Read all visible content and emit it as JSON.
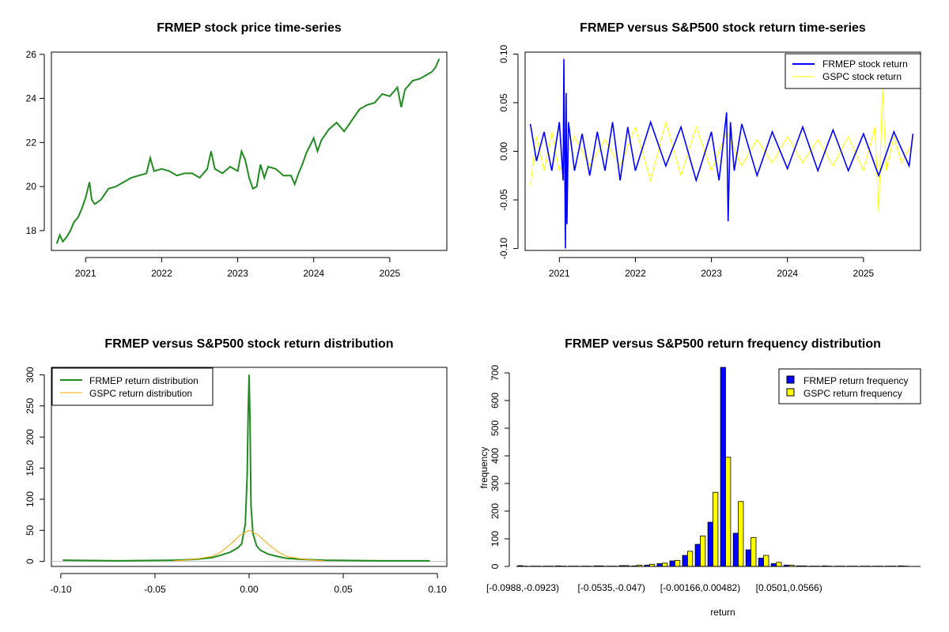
{
  "chart_data": [
    {
      "type": "line",
      "title": "FRMEP stock price time-series",
      "xlabel": "",
      "ylabel": "",
      "xlim": [
        2020.55,
        2025.75
      ],
      "ylim": [
        17.1,
        26.1
      ],
      "x_ticks": [
        2021,
        2022,
        2023,
        2024,
        2025
      ],
      "x_tick_labels": [
        "2021",
        "2022",
        "2023",
        "2024",
        "2025"
      ],
      "y_ticks": [
        18,
        20,
        22,
        24,
        26
      ],
      "y_tick_labels": [
        "18",
        "20",
        "22",
        "24",
        "26"
      ],
      "series": [
        {
          "name": "FRMEP price",
          "color": "#228b22",
          "x": [
            2020.62,
            2020.66,
            2020.7,
            2020.75,
            2020.8,
            2020.85,
            2020.9,
            2020.95,
            2021.0,
            2021.05,
            2021.08,
            2021.12,
            2021.2,
            2021.3,
            2021.4,
            2021.5,
            2021.6,
            2021.7,
            2021.8,
            2021.85,
            2021.9,
            2022.0,
            2022.1,
            2022.2,
            2022.3,
            2022.4,
            2022.5,
            2022.6,
            2022.65,
            2022.7,
            2022.8,
            2022.9,
            2023.0,
            2023.05,
            2023.1,
            2023.15,
            2023.2,
            2023.25,
            2023.3,
            2023.35,
            2023.4,
            2023.5,
            2023.6,
            2023.7,
            2023.75,
            2023.8,
            2023.85,
            2023.9,
            2024.0,
            2024.05,
            2024.1,
            2024.2,
            2024.3,
            2024.4,
            2024.5,
            2024.6,
            2024.7,
            2024.8,
            2024.9,
            2025.0,
            2025.1,
            2025.15,
            2025.2,
            2025.3,
            2025.4,
            2025.5,
            2025.55,
            2025.6,
            2025.65
          ],
          "values": [
            17.4,
            17.8,
            17.5,
            17.7,
            18.0,
            18.4,
            18.6,
            19.0,
            19.5,
            20.2,
            19.4,
            19.2,
            19.4,
            19.9,
            20.0,
            20.2,
            20.4,
            20.5,
            20.6,
            21.3,
            20.7,
            20.8,
            20.7,
            20.5,
            20.6,
            20.6,
            20.4,
            20.8,
            21.6,
            20.8,
            20.6,
            20.9,
            20.7,
            21.6,
            21.2,
            20.4,
            19.9,
            20.0,
            21.0,
            20.4,
            20.9,
            20.8,
            20.5,
            20.5,
            20.1,
            20.6,
            21.0,
            21.5,
            22.2,
            21.6,
            22.1,
            22.6,
            22.9,
            22.5,
            23.0,
            23.5,
            23.7,
            23.8,
            24.2,
            24.1,
            24.5,
            23.6,
            24.4,
            24.8,
            24.9,
            25.1,
            25.2,
            25.4,
            25.8
          ]
        }
      ]
    },
    {
      "type": "line",
      "title": "FRMEP versus S&P500 stock return time-series",
      "xlabel": "",
      "ylabel": "",
      "xlim": [
        2020.55,
        2025.75
      ],
      "ylim": [
        -0.102,
        0.102
      ],
      "x_ticks": [
        2021,
        2022,
        2023,
        2024,
        2025
      ],
      "x_tick_labels": [
        "2021",
        "2022",
        "2023",
        "2024",
        "2025"
      ],
      "y_ticks": [
        -0.1,
        -0.05,
        0.0,
        0.05,
        0.1
      ],
      "y_tick_labels": [
        "-0.10",
        "-0.05",
        "0.00",
        "0.05",
        "0.10"
      ],
      "legend": [
        "FRMEP stock return",
        "GSPC stock return"
      ],
      "legend_position": "top-right",
      "series": [
        {
          "name": "FRMEP stock return",
          "color": "#0000ff",
          "x": [
            2020.62,
            2020.7,
            2020.8,
            2020.9,
            2021.0,
            2021.05,
            2021.06,
            2021.08,
            2021.09,
            2021.1,
            2021.12,
            2021.2,
            2021.3,
            2021.4,
            2021.5,
            2021.6,
            2021.7,
            2021.8,
            2021.9,
            2022.0,
            2022.2,
            2022.4,
            2022.6,
            2022.8,
            2023.0,
            2023.1,
            2023.2,
            2023.22,
            2023.25,
            2023.3,
            2023.4,
            2023.6,
            2023.8,
            2024.0,
            2024.2,
            2024.4,
            2024.6,
            2024.8,
            2025.0,
            2025.2,
            2025.4,
            2025.6,
            2025.65
          ],
          "values": [
            0.028,
            -0.01,
            0.02,
            -0.02,
            0.03,
            -0.03,
            0.095,
            -0.1,
            0.06,
            -0.075,
            0.03,
            -0.02,
            0.018,
            -0.025,
            0.02,
            -0.02,
            0.03,
            -0.03,
            0.025,
            -0.02,
            0.03,
            -0.015,
            0.025,
            -0.03,
            0.02,
            -0.03,
            0.04,
            -0.072,
            0.03,
            -0.02,
            0.028,
            -0.025,
            0.02,
            -0.018,
            0.025,
            -0.02,
            0.022,
            -0.02,
            0.018,
            -0.025,
            0.02,
            -0.015,
            0.018
          ]
        },
        {
          "name": "GSPC stock return",
          "color": "#ffff00",
          "x": [
            2020.62,
            2020.7,
            2020.8,
            2020.9,
            2021.0,
            2021.2,
            2021.4,
            2021.6,
            2021.8,
            2022.0,
            2022.2,
            2022.4,
            2022.6,
            2022.8,
            2023.0,
            2023.2,
            2023.4,
            2023.6,
            2023.8,
            2024.0,
            2024.2,
            2024.4,
            2024.6,
            2024.8,
            2025.0,
            2025.15,
            2025.2,
            2025.25,
            2025.3,
            2025.4,
            2025.5,
            2025.65
          ],
          "values": [
            -0.035,
            0.015,
            -0.02,
            0.02,
            -0.02,
            0.015,
            -0.015,
            0.012,
            -0.015,
            0.025,
            -0.03,
            0.03,
            -0.025,
            0.025,
            -0.02,
            0.02,
            -0.015,
            0.012,
            -0.012,
            0.015,
            -0.012,
            0.012,
            -0.015,
            0.015,
            -0.02,
            0.025,
            -0.062,
            0.065,
            -0.02,
            0.015,
            -0.012,
            0.01
          ]
        }
      ]
    },
    {
      "type": "line",
      "title": "FRMEP versus S&P500 stock return distribution",
      "xlabel": "",
      "ylabel": "",
      "xlim": [
        -0.105,
        0.105
      ],
      "ylim": [
        -8,
        312
      ],
      "x_ticks": [
        -0.1,
        -0.05,
        0.0,
        0.05,
        0.1
      ],
      "x_tick_labels": [
        "-0.10",
        "-0.05",
        "0.00",
        "0.05",
        "0.10"
      ],
      "y_ticks": [
        0,
        50,
        100,
        150,
        200,
        250,
        300
      ],
      "y_tick_labels": [
        "0",
        "50",
        "100",
        "150",
        "200",
        "250",
        "300"
      ],
      "legend": [
        "FRMEP return distribution",
        "GSPC return distribution"
      ],
      "legend_position": "top-left",
      "series": [
        {
          "name": "FRMEP return distribution",
          "color": "#228b22",
          "x": [
            -0.099,
            -0.07,
            -0.04,
            -0.03,
            -0.02,
            -0.015,
            -0.01,
            -0.006,
            -0.004,
            -0.002,
            -0.001,
            -0.0005,
            0.0,
            0.0005,
            0.001,
            0.002,
            0.004,
            0.006,
            0.01,
            0.015,
            0.02,
            0.03,
            0.04,
            0.07,
            0.096
          ],
          "values": [
            2,
            1,
            2,
            3,
            6,
            10,
            15,
            22,
            28,
            60,
            140,
            240,
            300,
            220,
            90,
            45,
            25,
            18,
            12,
            8,
            5,
            3,
            2,
            1,
            1
          ]
        },
        {
          "name": "GSPC return distribution",
          "color": "#ffa500",
          "x": [
            -0.04,
            -0.03,
            -0.02,
            -0.015,
            -0.01,
            -0.005,
            0.0,
            0.005,
            0.01,
            0.015,
            0.02,
            0.03,
            0.04
          ],
          "values": [
            1,
            3,
            8,
            15,
            27,
            42,
            50,
            42,
            28,
            16,
            8,
            3,
            1
          ]
        }
      ]
    },
    {
      "type": "bar",
      "title": "FRMEP versus S&P500 return frequency distribution",
      "xlabel": "return",
      "ylabel": "frequency",
      "ylim": [
        0,
        720
      ],
      "y_ticks": [
        0,
        100,
        200,
        300,
        400,
        500,
        600,
        700
      ],
      "y_tick_labels": [
        "0",
        "100",
        "200",
        "300",
        "400",
        "500",
        "600",
        "700"
      ],
      "x_tick_labels": [
        "[-0.0988,-0.0923)",
        "[-0.0535,-0.047)",
        "[-0.00166,0.00482)",
        "[0.0501,0.0566)"
      ],
      "x_tick_bins": [
        0,
        7,
        14,
        21
      ],
      "legend": [
        "FRMEP return frequency",
        "GSPC return frequency"
      ],
      "legend_position": "top-right",
      "categories": [
        "b1",
        "b2",
        "b3",
        "b4",
        "b5",
        "b6",
        "b7",
        "b8",
        "b9",
        "b10",
        "b11",
        "b12",
        "b13",
        "b14",
        "b15",
        "b16",
        "b17",
        "b18",
        "b19",
        "b20",
        "b21",
        "b22",
        "b23",
        "b24",
        "b25",
        "b26",
        "b27",
        "b28",
        "b29",
        "b30",
        "b31"
      ],
      "series": [
        {
          "name": "FRMEP return frequency",
          "color": "#0000ff",
          "values": [
            3,
            1,
            1,
            2,
            1,
            1,
            2,
            1,
            3,
            2,
            5,
            10,
            20,
            40,
            80,
            160,
            720,
            120,
            60,
            30,
            10,
            5,
            2,
            1,
            2,
            1,
            1,
            1,
            1,
            1,
            2
          ]
        },
        {
          "name": "GSPC return frequency",
          "color": "#ffff00",
          "values": [
            1,
            1,
            1,
            1,
            1,
            1,
            2,
            1,
            3,
            5,
            8,
            12,
            22,
            55,
            110,
            268,
            395,
            235,
            105,
            40,
            15,
            5,
            2,
            1,
            1,
            1,
            1,
            1,
            1,
            1,
            1
          ]
        }
      ]
    }
  ]
}
